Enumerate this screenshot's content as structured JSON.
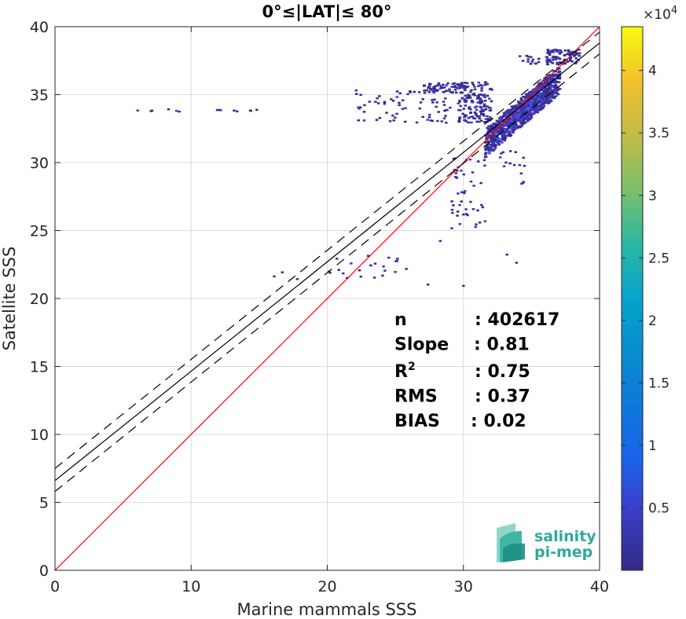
{
  "chart_data": {
    "type": "scatter",
    "title": "0°≤|LAT|≤ 80°",
    "xlabel": "Marine mammals SSS",
    "ylabel": "Satellite SSS",
    "xlim": [
      0,
      40
    ],
    "ylim": [
      0,
      40
    ],
    "xticks": [
      "0",
      "10",
      "20",
      "30",
      "40"
    ],
    "yticks": [
      "0",
      "5",
      "10",
      "15",
      "20",
      "25",
      "30",
      "35",
      "40"
    ],
    "grid": true,
    "colorbar": {
      "exponent_label": "×10",
      "exponent_power": "4",
      "range": [
        0,
        4.35
      ],
      "ticks": [
        "0.5",
        "1",
        "1.5",
        "2",
        "2.5",
        "3",
        "3.5",
        "4"
      ],
      "colormap": "parula"
    },
    "lines": [
      {
        "role": "one-to-one",
        "color": "#ff0000",
        "x": [
          0,
          40
        ],
        "y": [
          0,
          40
        ]
      },
      {
        "role": "regression",
        "color": "#000000",
        "x": [
          0,
          40
        ],
        "y": [
          6.6,
          38.8
        ]
      },
      {
        "role": "regression-plus",
        "color": "#000000",
        "dashed": true,
        "x": [
          0,
          40
        ],
        "y": [
          7.5,
          39.6
        ]
      },
      {
        "role": "regression-minus",
        "color": "#000000",
        "dashed": true,
        "x": [
          0,
          40
        ],
        "y": [
          5.8,
          38.0
        ]
      }
    ],
    "stats": [
      {
        "label": "n",
        "value": ": 402617"
      },
      {
        "label": "Slope",
        "value": ": 0.81"
      },
      {
        "label": "R",
        "sup": "2",
        "value": ": 0.75"
      },
      {
        "label": "RMS",
        "value": ": 0.37"
      },
      {
        "label": "BIAS",
        "value": ": 0.02"
      }
    ],
    "clusters": [
      {
        "x": [
          31.5,
          37.0
        ],
        "y": [
          31.5,
          36.2
        ],
        "n": 700,
        "level": 0.08,
        "diag": true
      },
      {
        "x": [
          32.0,
          36.5
        ],
        "y": [
          32.0,
          35.8
        ],
        "n": 350,
        "level": 0.2,
        "diag": true
      },
      {
        "x": [
          33.5,
          35.5
        ],
        "y": [
          33.2,
          35.0
        ],
        "n": 120,
        "level": 0.3,
        "diag": true
      },
      {
        "x": [
          29.5,
          32.0
        ],
        "y": [
          33.0,
          36.0
        ],
        "n": 160,
        "level": 0.05
      },
      {
        "x": [
          27.0,
          30.0
        ],
        "y": [
          35.2,
          36.0
        ],
        "n": 70,
        "level": 0.03
      },
      {
        "x": [
          36.0,
          38.5
        ],
        "y": [
          37.3,
          38.4
        ],
        "n": 90,
        "level": 0.05
      },
      {
        "x": [
          34.0,
          35.5
        ],
        "y": [
          37.3,
          38.0
        ],
        "n": 14,
        "level": 0.02
      },
      {
        "x": [
          22.0,
          29.0
        ],
        "y": [
          33.0,
          35.5
        ],
        "n": 70,
        "level": 0.02
      },
      {
        "x": [
          29.0,
          31.5
        ],
        "y": [
          25.0,
          30.5
        ],
        "n": 45,
        "level": 0.02
      },
      {
        "x": [
          32.5,
          34.5
        ],
        "y": [
          28.5,
          31.0
        ],
        "n": 16,
        "level": 0.02
      },
      {
        "x": [
          20.0,
          26.0
        ],
        "y": [
          21.5,
          23.5
        ],
        "n": 22,
        "level": 0.02
      },
      {
        "x": [
          5.5,
          18.0
        ],
        "y": [
          33.8,
          34.0
        ],
        "n": 14,
        "level": 0.02
      }
    ],
    "points": [
      {
        "x": 27.3,
        "y": 21.1
      },
      {
        "x": 29.9,
        "y": 21.0
      },
      {
        "x": 16.0,
        "y": 21.7
      },
      {
        "x": 16.6,
        "y": 22.0
      },
      {
        "x": 17.7,
        "y": 21.5
      },
      {
        "x": 28.2,
        "y": 24.3
      },
      {
        "x": 33.1,
        "y": 23.3
      },
      {
        "x": 30.2,
        "y": 26.2
      },
      {
        "x": 33.8,
        "y": 22.7
      }
    ],
    "logo": {
      "line1": "salinity",
      "line2": "pi-mep"
    }
  }
}
